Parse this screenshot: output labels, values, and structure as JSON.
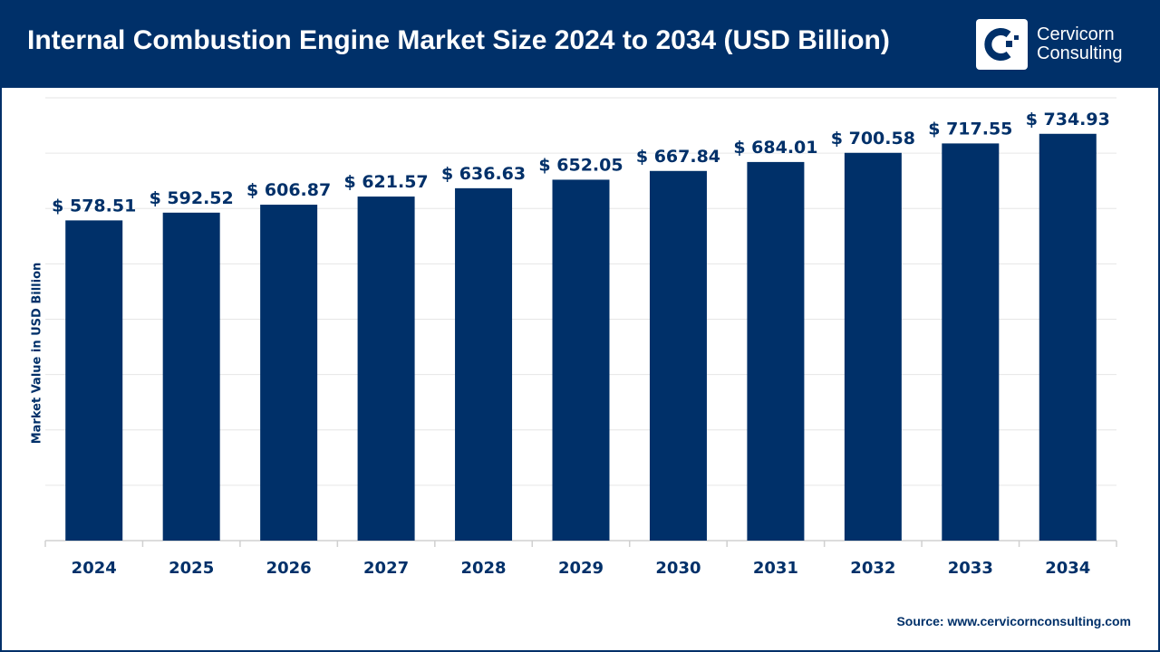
{
  "header": {
    "title": "Internal Combustion Engine Market Size 2024 to 2034 (USD Billion)"
  },
  "logo": {
    "line1": "Cervicorn",
    "line2": "Consulting"
  },
  "source": "Source: www.cervicornconsulting.com",
  "colors": {
    "brand": "#003069",
    "bar": "#003069",
    "grid": "#e6e6e6"
  },
  "chart_data": {
    "type": "bar",
    "title": "Internal Combustion Engine Market Size 2024 to 2034 (USD Billion)",
    "xlabel": "",
    "ylabel": "Market Value in USD Billion",
    "ylim": [
      0,
      800
    ],
    "grid": true,
    "value_prefix": "$ ",
    "categories": [
      "2024",
      "2025",
      "2026",
      "2027",
      "2028",
      "2029",
      "2030",
      "2031",
      "2032",
      "2033",
      "2034"
    ],
    "values": [
      578.51,
      592.52,
      606.87,
      621.57,
      636.63,
      652.05,
      667.84,
      684.01,
      700.58,
      717.55,
      734.93
    ],
    "data_labels": [
      "$ 578.51",
      "$ 592.52",
      "$ 606.87",
      "$ 621.57",
      "$ 636.63",
      "$ 652.05",
      "$ 667.84",
      "$ 684.01",
      "$ 700.58",
      "$ 717.55",
      "$ 734.93"
    ]
  }
}
